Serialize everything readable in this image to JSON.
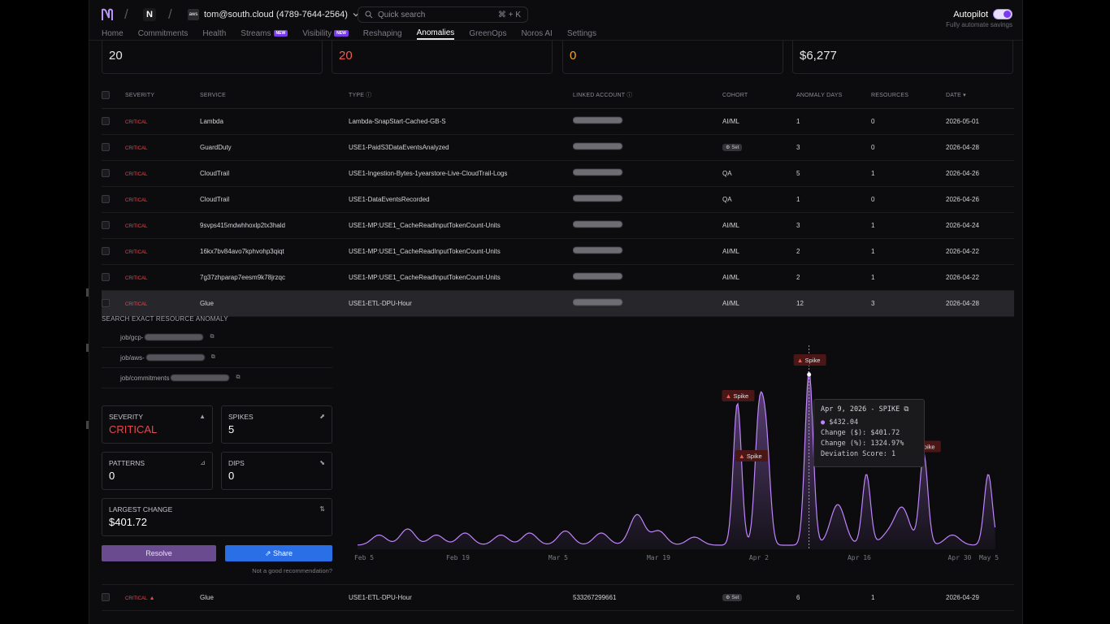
{
  "header": {
    "account": "tom@south.cloud (4789-7644-2564)",
    "account_logo_text": "aws",
    "org_initial": "N",
    "search_placeholder": "Quick search",
    "search_shortcut": "⌘ + K",
    "autopilot_label": "Autopilot",
    "autopilot_sub": "Fully automate savings",
    "autopilot_on": true
  },
  "tabs": [
    {
      "label": "Home",
      "badge": ""
    },
    {
      "label": "Commitments",
      "badge": ""
    },
    {
      "label": "Health",
      "badge": ""
    },
    {
      "label": "Streams",
      "badge": "NEW"
    },
    {
      "label": "Visibility",
      "badge": "NEW"
    },
    {
      "label": "Reshaping",
      "badge": ""
    },
    {
      "label": "Anomalies",
      "badge": ""
    },
    {
      "label": "GreenOps",
      "badge": ""
    },
    {
      "label": "Noros AI",
      "badge": ""
    },
    {
      "label": "Settings",
      "badge": ""
    }
  ],
  "active_tab": "Anomalies",
  "stats": [
    {
      "value": "20",
      "color": "#e5e5e5"
    },
    {
      "value": "20",
      "color": "#f25c54"
    },
    {
      "value": "0",
      "color": "#f5a524"
    },
    {
      "value": "$6,277",
      "color": "#e5e5e5"
    }
  ],
  "table": {
    "headers": [
      "SEVERITY",
      "SERVICE",
      "TYPE",
      "LINKED ACCOUNT",
      "COHORT",
      "ANOMALY DAYS",
      "RESOURCES",
      "DATE"
    ],
    "rows": [
      {
        "severity": "CRITICAL",
        "service": "Lambda",
        "type": "Lambda-SnapStart-Cached-GB-S",
        "cohort": "AI/ML",
        "days": "1",
        "resources": "0",
        "date": "2026-05-01"
      },
      {
        "severity": "CRITICAL",
        "service": "GuardDuty",
        "type": "USE1-PaidS3DataEventsAnalyzed",
        "cohort": "Set",
        "days": "3",
        "resources": "0",
        "date": "2026-04-28"
      },
      {
        "severity": "CRITICAL",
        "service": "CloudTrail",
        "type": "USE1-Ingestion-Bytes-1yearstore-Live-CloudTrail-Logs",
        "cohort": "QA",
        "days": "5",
        "resources": "1",
        "date": "2026-04-26"
      },
      {
        "severity": "CRITICAL",
        "service": "CloudTrail",
        "type": "USE1-DataEventsRecorded",
        "cohort": "QA",
        "days": "1",
        "resources": "0",
        "date": "2026-04-26"
      },
      {
        "severity": "CRITICAL",
        "service": "9svps415mdwhhoxlp2tx3hald",
        "type": "USE1-MP:USE1_CacheReadInputTokenCount-Units",
        "cohort": "AI/ML",
        "days": "3",
        "resources": "1",
        "date": "2026-04-24"
      },
      {
        "severity": "CRITICAL",
        "service": "16kx7bv84avo7kphvohp3qiqt",
        "type": "USE1-MP:USE1_CacheReadInputTokenCount-Units",
        "cohort": "AI/ML",
        "days": "2",
        "resources": "1",
        "date": "2026-04-22"
      },
      {
        "severity": "CRITICAL",
        "service": "7g37zhparap7eesm9k78jrzqc",
        "type": "USE1-MP:USE1_CacheReadInputTokenCount-Units",
        "cohort": "AI/ML",
        "days": "2",
        "resources": "1",
        "date": "2026-04-22"
      },
      {
        "severity": "CRITICAL",
        "service": "Glue",
        "type": "USE1-ETL-DPU-Hour",
        "cohort": "AI/ML",
        "days": "12",
        "resources": "3",
        "date": "2026-04-28"
      }
    ],
    "bottom_row": {
      "severity": "CRITICAL",
      "service": "Glue",
      "type": "USE1-ETL-DPU-Hour",
      "account": "533267299661",
      "cohort": "Set",
      "days": "6",
      "resources": "1",
      "date": "2026-04-29"
    }
  },
  "detail": {
    "search_label": "SEARCH EXACT RESOURCE ANOMALY",
    "resources": [
      "job/gcp-",
      "job/aws-",
      "job/commitments"
    ],
    "severity_label": "SEVERITY",
    "severity_value": "CRITICAL",
    "spikes_label": "SPIKES",
    "spikes_value": "5",
    "patterns_label": "PATTERNS",
    "patterns_value": "0",
    "dips_label": "DIPS",
    "dips_value": "0",
    "largest_label": "LARGEST CHANGE",
    "largest_value": "$401.72",
    "resolve_label": "Resolve",
    "share_label": "Share",
    "not_good": "Not a good recommendation?"
  },
  "chart_data": {
    "type": "area",
    "x_ticks": [
      "Feb 5",
      "Feb 19",
      "Mar 5",
      "Mar 19",
      "Apr 2",
      "Apr 16",
      "Apr 30",
      "May 5"
    ],
    "spike_label": "Spike",
    "spikes": [
      "2026-03-30",
      "2026-04-02",
      "2026-04-09",
      "2026-04-17",
      "2026-04-25"
    ],
    "peak": {
      "date": "2026-04-09",
      "value": 432.04
    },
    "series_color": "#c084fc"
  },
  "tooltip": {
    "title": "Apr 9, 2026 - SPIKE",
    "value": "$432.04",
    "change_abs": "Change ($): $401.72",
    "change_pct": "Change (%): 1324.97%",
    "deviation": "Deviation Score: 1"
  }
}
